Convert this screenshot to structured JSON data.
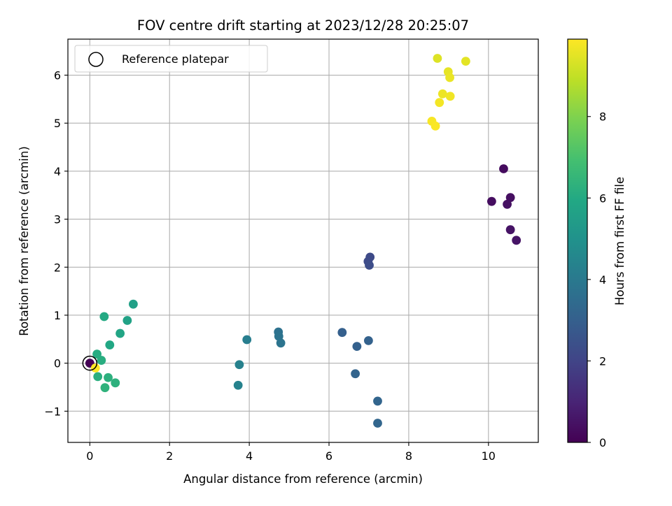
{
  "chart_data": {
    "type": "scatter",
    "title": "FOV centre drift starting at 2023/12/28 20:25:07",
    "xlabel": "Angular distance from reference (arcmin)",
    "ylabel": "Rotation from reference (arcmin)",
    "xlim": [
      -0.55,
      11.25
    ],
    "ylim": [
      -1.65,
      6.75
    ],
    "xticks": [
      0,
      2,
      4,
      6,
      8,
      10
    ],
    "yticks": [
      -1,
      0,
      1,
      2,
      3,
      4,
      5,
      6
    ],
    "grid": true,
    "legend": {
      "placement": "top-left",
      "entries": [
        "Reference platepar"
      ]
    },
    "reference_point": {
      "x": 0,
      "y": 0
    },
    "colorbar": {
      "label": "Hours from first FF file",
      "colormap": "viridis",
      "range": [
        0,
        9.9
      ],
      "ticks": [
        0,
        2,
        4,
        6,
        8
      ]
    },
    "points": [
      {
        "x": 0.0,
        "y": 0.0,
        "h": 0.0
      },
      {
        "x": 10.38,
        "y": 4.05,
        "h": 0.3
      },
      {
        "x": 10.08,
        "y": 3.37,
        "h": 0.35
      },
      {
        "x": 10.55,
        "y": 3.45,
        "h": 0.4
      },
      {
        "x": 10.47,
        "y": 3.31,
        "h": 0.45
      },
      {
        "x": 10.55,
        "y": 2.78,
        "h": 0.5
      },
      {
        "x": 10.7,
        "y": 2.56,
        "h": 0.55
      },
      {
        "x": 7.03,
        "y": 2.21,
        "h": 2.2
      },
      {
        "x": 6.98,
        "y": 2.12,
        "h": 2.25
      },
      {
        "x": 7.01,
        "y": 2.04,
        "h": 2.3
      },
      {
        "x": 6.33,
        "y": 0.64,
        "h": 3.0
      },
      {
        "x": 6.7,
        "y": 0.35,
        "h": 3.05
      },
      {
        "x": 6.99,
        "y": 0.47,
        "h": 3.1
      },
      {
        "x": 6.66,
        "y": -0.22,
        "h": 3.15
      },
      {
        "x": 7.22,
        "y": -0.79,
        "h": 3.2
      },
      {
        "x": 7.22,
        "y": -1.25,
        "h": 3.25
      },
      {
        "x": 4.73,
        "y": 0.65,
        "h": 3.7
      },
      {
        "x": 4.74,
        "y": 0.56,
        "h": 3.75
      },
      {
        "x": 4.79,
        "y": 0.42,
        "h": 3.8
      },
      {
        "x": 3.94,
        "y": 0.49,
        "h": 4.2
      },
      {
        "x": 3.75,
        "y": -0.03,
        "h": 4.3
      },
      {
        "x": 3.72,
        "y": -0.46,
        "h": 4.35
      },
      {
        "x": 1.09,
        "y": 1.23,
        "h": 5.6
      },
      {
        "x": 0.94,
        "y": 0.89,
        "h": 5.7
      },
      {
        "x": 0.76,
        "y": 0.62,
        "h": 5.8
      },
      {
        "x": 0.5,
        "y": 0.38,
        "h": 5.9
      },
      {
        "x": 0.36,
        "y": 0.97,
        "h": 6.0
      },
      {
        "x": 0.18,
        "y": 0.19,
        "h": 6.1
      },
      {
        "x": 0.29,
        "y": 0.06,
        "h": 6.15
      },
      {
        "x": 0.2,
        "y": -0.28,
        "h": 6.2
      },
      {
        "x": 0.46,
        "y": -0.3,
        "h": 6.25
      },
      {
        "x": 0.64,
        "y": -0.41,
        "h": 6.3
      },
      {
        "x": 0.38,
        "y": -0.51,
        "h": 6.35
      },
      {
        "x": 8.72,
        "y": 6.35,
        "h": 9.4
      },
      {
        "x": 9.43,
        "y": 6.29,
        "h": 9.5
      },
      {
        "x": 8.99,
        "y": 6.07,
        "h": 9.55
      },
      {
        "x": 9.03,
        "y": 5.95,
        "h": 9.6
      },
      {
        "x": 8.85,
        "y": 5.61,
        "h": 9.65
      },
      {
        "x": 9.04,
        "y": 5.56,
        "h": 9.7
      },
      {
        "x": 8.77,
        "y": 5.43,
        "h": 9.75
      },
      {
        "x": 8.58,
        "y": 5.04,
        "h": 9.8
      },
      {
        "x": 8.67,
        "y": 4.94,
        "h": 9.85
      },
      {
        "x": 0.14,
        "y": -0.1,
        "h": 9.9
      }
    ]
  }
}
